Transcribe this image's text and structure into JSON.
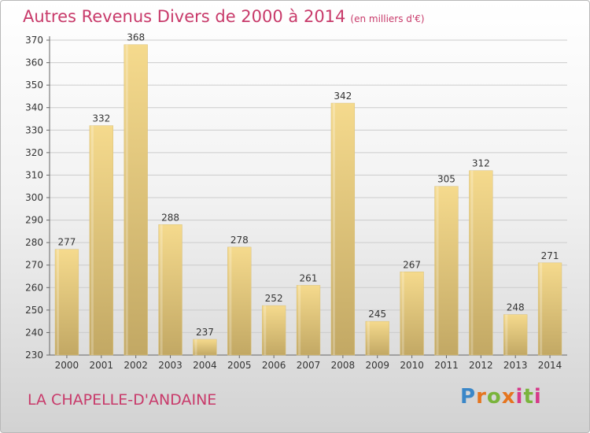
{
  "header": {
    "title": "Autres Revenus Divers de 2000 à 2014",
    "subtitle": "(en milliers d'€)"
  },
  "footer": {
    "commune": "LA CHAPELLE-D'ANDAINE",
    "logo": "Proxiti"
  },
  "colors": {
    "title": "#c83a6a",
    "bar_top": "#f5da8d",
    "bar_bottom": "#c2a864",
    "grid": "#cccccc"
  },
  "chart_data": {
    "type": "bar",
    "title": "Autres Revenus Divers de 2000 à 2014",
    "subtitle": "(en milliers d'€)",
    "xlabel": "",
    "ylabel": "",
    "categories": [
      "2000",
      "2001",
      "2002",
      "2003",
      "2004",
      "2005",
      "2006",
      "2007",
      "2008",
      "2009",
      "2010",
      "2011",
      "2012",
      "2013",
      "2014"
    ],
    "values": [
      277,
      332,
      368,
      288,
      237,
      278,
      252,
      261,
      342,
      245,
      267,
      305,
      312,
      248,
      271
    ],
    "ylim": [
      230,
      370
    ],
    "yticks": [
      230,
      240,
      250,
      260,
      270,
      280,
      290,
      300,
      310,
      320,
      330,
      340,
      350,
      360,
      370
    ],
    "grid": true,
    "legend": "none"
  }
}
